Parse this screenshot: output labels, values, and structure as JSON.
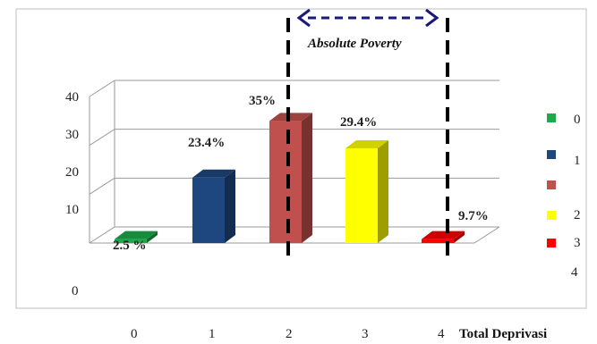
{
  "chart_data": {
    "type": "bar",
    "categories": [
      "0",
      "1",
      "2",
      "3",
      "4"
    ],
    "values": [
      2.5,
      23.4,
      35,
      29.4,
      9.7
    ],
    "data_labels": [
      "2.5 %",
      "23.4%",
      "35%",
      "29.4%",
      "9.7%"
    ],
    "colors": [
      "#1ca94a",
      "#1f477f",
      "#c0504d",
      "#ffff00",
      "#ff0000"
    ],
    "y_ticks": [
      "40",
      "30",
      "20",
      "10",
      "0"
    ],
    "ylim": [
      0,
      40
    ],
    "xlabel": "Total Deprivasi",
    "legend": {
      "placement": "right",
      "entries": [
        "0",
        "1",
        "2",
        "3",
        "4"
      ],
      "marker_colors": [
        "#1ca94a",
        "#1f477f",
        "#c0504d",
        "#ffff00",
        "#ff0000"
      ]
    },
    "annotation": "Absolute Poverty",
    "annotation_span": [
      "2",
      "4"
    ],
    "grid": true
  }
}
